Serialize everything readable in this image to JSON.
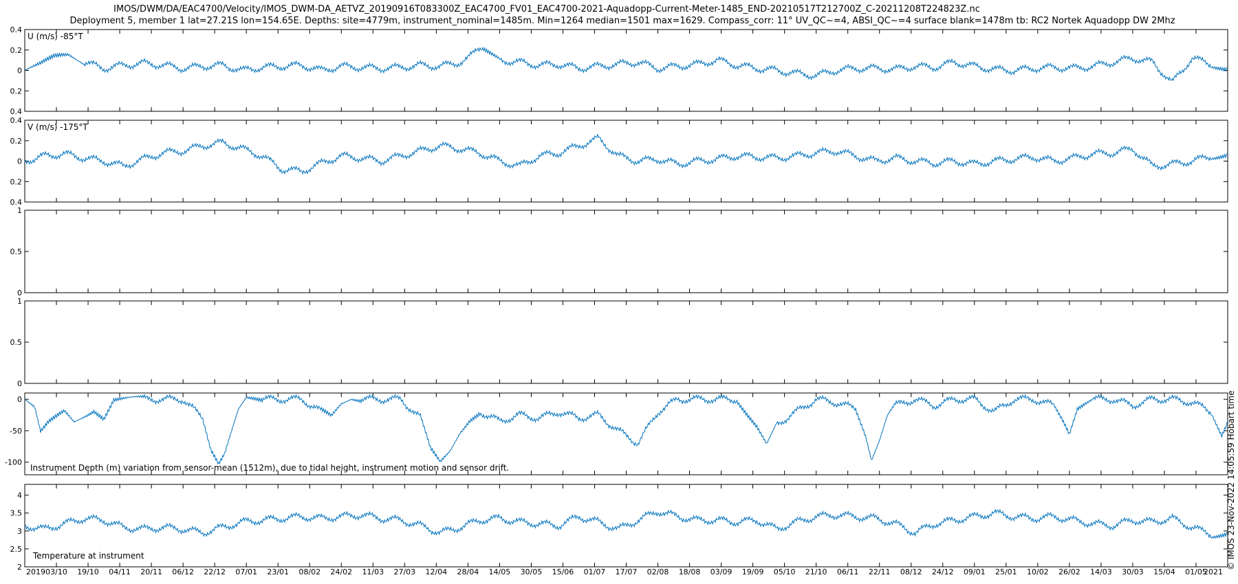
{
  "figure": {
    "title_line1": "IMOS/DWM/DA/EAC4700/Velocity/IMOS_DWM-DA_AETVZ_20190916T083300Z_EAC4700_FV01_EAC4700-2021-Aquadopp-Current-Meter-1485_END-20210517T212700Z_C-20211208T224823Z.nc",
    "title_line2": "Deployment 5, member 1 lat=27.21S lon=154.65E. Depths: site=4779m, instrument_nominal=1485m. Min=1264 median=1501 max=1629. Compass_corr: 11° UV_QC~=4, ABSI_QC~=4 surface blank=1478m tb: RC2 Nortek Aquadopp DW 2Mhz",
    "copyright": "© IMOS 23-Nov-2022 14:05:59 Hobart time",
    "line_color": "#0072bd"
  },
  "chart_data": [
    {
      "type": "line",
      "label": "U (m/s) -85°T",
      "ylim": [
        -0.4,
        0.4
      ],
      "yticks": [
        0.4,
        0.2,
        0,
        -0.2,
        -0.4
      ],
      "yticklabels": [
        "0.4",
        "0.2",
        "0",
        "0.2",
        "0.4"
      ],
      "x": [
        0,
        8,
        15,
        22,
        30,
        40,
        50,
        60,
        70,
        80,
        90,
        100,
        110,
        120,
        130,
        140,
        150,
        160,
        170,
        180,
        190,
        200,
        210,
        220,
        232,
        240,
        250,
        260,
        270,
        280,
        290,
        300,
        310,
        320,
        330,
        340,
        350,
        360,
        370,
        380,
        390,
        400,
        410,
        420,
        430,
        440,
        450,
        460,
        470,
        480,
        490,
        500,
        510,
        520,
        530,
        540,
        550,
        560,
        570,
        580,
        590,
        600,
        608
      ],
      "y": [
        0.0,
        0.05,
        0.12,
        0.15,
        0.08,
        0.02,
        0.05,
        0.07,
        0.05,
        0.02,
        0.04,
        0.05,
        0.0,
        0.03,
        0.04,
        0.05,
        0.0,
        0.04,
        0.03,
        0.02,
        0.03,
        0.05,
        0.04,
        0.08,
        0.22,
        0.1,
        0.08,
        0.05,
        0.06,
        0.02,
        0.04,
        0.06,
        0.08,
        0.02,
        0.04,
        0.06,
        0.1,
        0.05,
        0.02,
        0.0,
        -0.03,
        -0.05,
        0.0,
        0.02,
        0.02,
        0.01,
        0.04,
        0.03,
        0.08,
        0.04,
        0.01,
        0.0,
        0.02,
        0.03,
        0.02,
        0.04,
        0.08,
        0.12,
        0.08,
        -0.12,
        0.12,
        0.06,
        0.02
      ]
    },
    {
      "type": "line",
      "label": "V (m/s) -175°T",
      "ylim": [
        -0.4,
        0.4
      ],
      "yticks": [
        0.4,
        0.2,
        0,
        -0.2,
        -0.4
      ],
      "yticklabels": [
        "0.4",
        "0.2",
        "0",
        "0.2",
        "0.4"
      ],
      "x": [
        0,
        10,
        20,
        30,
        40,
        50,
        60,
        70,
        80,
        90,
        100,
        110,
        120,
        130,
        140,
        150,
        160,
        170,
        180,
        190,
        200,
        210,
        220,
        230,
        240,
        250,
        260,
        270,
        280,
        290,
        300,
        310,
        320,
        330,
        340,
        350,
        360,
        370,
        380,
        390,
        400,
        410,
        420,
        430,
        440,
        450,
        460,
        470,
        480,
        490,
        500,
        510,
        520,
        530,
        540,
        550,
        560,
        570,
        580,
        590,
        600,
        608
      ],
      "y": [
        0.0,
        0.05,
        0.07,
        0.03,
        0.0,
        -0.05,
        0.02,
        0.08,
        0.1,
        0.15,
        0.18,
        0.12,
        0.05,
        -0.08,
        -0.1,
        -0.02,
        0.05,
        0.03,
        0.0,
        0.05,
        0.1,
        0.15,
        0.12,
        0.08,
        0.0,
        -0.05,
        0.05,
        0.08,
        0.15,
        0.22,
        0.05,
        0.0,
        0.02,
        -0.03,
        0.0,
        0.02,
        0.05,
        0.04,
        0.03,
        0.05,
        0.08,
        0.1,
        0.05,
        0.0,
        0.03,
        0.0,
        -0.02,
        0.0,
        -0.03,
        0.0,
        0.02,
        0.04,
        0.0,
        0.03,
        0.07,
        0.08,
        0.12,
        -0.05,
        -0.03,
        0.0,
        0.05,
        0.07
      ]
    },
    {
      "type": "line",
      "label": "",
      "ylim": [
        0,
        1
      ],
      "yticks": [
        1,
        0.5,
        0
      ],
      "yticklabels": [
        "1",
        "0.5",
        "0"
      ],
      "x": [],
      "y": []
    },
    {
      "type": "line",
      "label": "",
      "ylim": [
        0,
        1
      ],
      "yticks": [
        1,
        0.5,
        0
      ],
      "yticklabels": [
        "1",
        "0.5",
        "0"
      ],
      "x": [],
      "y": []
    },
    {
      "type": "line",
      "label": "Instrument Depth (m) variation from sensor-mean (1512m), due to tidal height, instrument motion and sensor drift.",
      "ylim": [
        -120,
        10
      ],
      "yticks": [
        0,
        -50,
        -100
      ],
      "yticklabels": [
        "0",
        "-50",
        "-100"
      ],
      "x": [
        0,
        5,
        8,
        12,
        16,
        20,
        25,
        30,
        35,
        40,
        45,
        50,
        55,
        60,
        70,
        80,
        90,
        94,
        98,
        101,
        104,
        108,
        112,
        120,
        130,
        140,
        150,
        155,
        160,
        165,
        170,
        180,
        190,
        200,
        205,
        210,
        215,
        220,
        225,
        230,
        240,
        250,
        260,
        270,
        280,
        290,
        300,
        310,
        320,
        330,
        340,
        350,
        360,
        365,
        370,
        375,
        380,
        390,
        400,
        410,
        420,
        425,
        428,
        432,
        436,
        440,
        450,
        460,
        470,
        480,
        490,
        500,
        510,
        520,
        525,
        528,
        532,
        540,
        550,
        560,
        570,
        580,
        590,
        600,
        605,
        608
      ],
      "y": [
        0,
        -15,
        -55,
        -40,
        -30,
        -20,
        -35,
        -25,
        -15,
        -28,
        0,
        0,
        0,
        0,
        0,
        0,
        -30,
        -80,
        -105,
        -90,
        -60,
        -20,
        0,
        0,
        0,
        0,
        -20,
        -30,
        -10,
        0,
        0,
        0,
        0,
        -30,
        -80,
        -100,
        -80,
        -50,
        -30,
        -20,
        -35,
        -25,
        -30,
        -20,
        -30,
        -25,
        -50,
        -70,
        -20,
        0,
        0,
        0,
        0,
        -20,
        -40,
        -70,
        -40,
        -20,
        0,
        -5,
        -15,
        -60,
        -100,
        -70,
        -30,
        -10,
        0,
        -10,
        0,
        0,
        -20,
        0,
        0,
        -10,
        -40,
        -60,
        -20,
        0,
        0,
        -10,
        0,
        0,
        -5,
        -20,
        -55,
        -35
      ]
    },
    {
      "type": "line",
      "label": "Temperature at instrument",
      "ylim": [
        2,
        4.3
      ],
      "yticks": [
        4,
        3.5,
        3,
        2.5,
        2
      ],
      "yticklabels": [
        "4",
        "3.5",
        "3",
        "2.5",
        "2"
      ],
      "x": [
        0,
        10,
        20,
        30,
        40,
        50,
        60,
        70,
        80,
        90,
        100,
        110,
        120,
        130,
        140,
        150,
        160,
        170,
        180,
        190,
        200,
        210,
        220,
        230,
        240,
        250,
        260,
        270,
        280,
        290,
        300,
        310,
        320,
        330,
        340,
        350,
        360,
        370,
        380,
        390,
        400,
        410,
        420,
        430,
        440,
        450,
        460,
        470,
        480,
        490,
        500,
        510,
        520,
        530,
        540,
        550,
        560,
        570,
        580,
        590,
        600,
        608
      ],
      "y": [
        3.15,
        3.05,
        3.2,
        3.35,
        3.3,
        3.1,
        3.05,
        3.1,
        3.05,
        2.95,
        3.1,
        3.25,
        3.3,
        3.35,
        3.4,
        3.35,
        3.4,
        3.45,
        3.35,
        3.3,
        3.15,
        2.95,
        3.1,
        3.3,
        3.35,
        3.25,
        3.2,
        3.15,
        3.4,
        3.25,
        3.05,
        3.3,
        3.55,
        3.4,
        3.3,
        3.3,
        3.25,
        3.3,
        3.05,
        3.25,
        3.4,
        3.45,
        3.4,
        3.35,
        3.2,
        2.95,
        3.2,
        3.3,
        3.4,
        3.5,
        3.4,
        3.35,
        3.4,
        3.3,
        3.2,
        3.15,
        3.3,
        3.25,
        3.35,
        3.1,
        2.9,
        2.95
      ]
    }
  ],
  "xaxis": {
    "range": [
      0,
      608
    ],
    "ticks": [
      16,
      32,
      48,
      64,
      80,
      96,
      112,
      128,
      144,
      160,
      176,
      192,
      208,
      224,
      240,
      256,
      272,
      288,
      304,
      320,
      336,
      352,
      368,
      384,
      400,
      416,
      432,
      448,
      464,
      480,
      496,
      512,
      528,
      544,
      560,
      576,
      592
    ],
    "ticklabels": [
      "03/10",
      "19/10",
      "04/11",
      "20/11",
      "06/12",
      "22/12",
      "07/01",
      "23/01",
      "08/02",
      "24/02",
      "11/03",
      "27/03",
      "12/04",
      "28/04",
      "14/05",
      "30/05",
      "15/06",
      "01/07",
      "17/07",
      "02/08",
      "18/08",
      "03/09",
      "19/09",
      "05/10",
      "21/10",
      "06/11",
      "22/11",
      "08/12",
      "24/12",
      "09/01",
      "25/01",
      "10/02",
      "26/02",
      "14/03",
      "30/03",
      "15/04",
      "01/05"
    ],
    "start_year": "2019",
    "end_year": "2021"
  }
}
